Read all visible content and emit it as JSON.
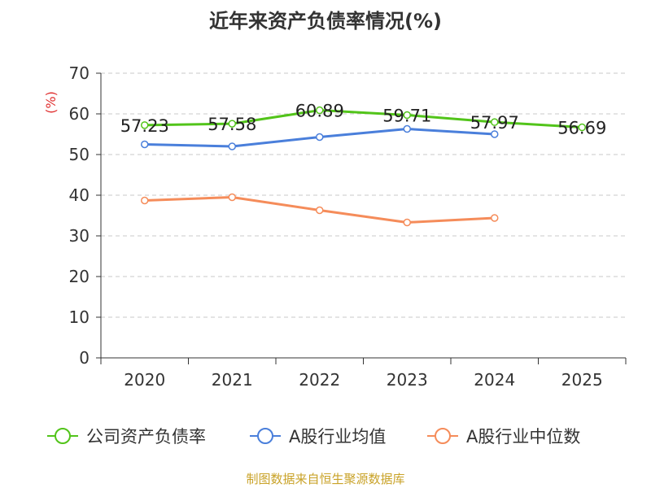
{
  "title": "近年来资产负债率情况(%)",
  "source_note": "制图数据来自恒生聚源数据库",
  "chart_data": {
    "type": "line",
    "categories": [
      "2020",
      "2021",
      "2022",
      "2023",
      "2024",
      "2025"
    ],
    "ylabel": "(%)",
    "ylim": [
      0,
      70
    ],
    "yticks": [
      0,
      10,
      20,
      30,
      40,
      50,
      60,
      70
    ],
    "grid": true,
    "legend_position": "bottom",
    "series": [
      {
        "name": "公司资产负债率",
        "color": "#52c41a",
        "values": [
          57.23,
          57.58,
          60.89,
          59.71,
          57.97,
          56.69
        ],
        "labels": [
          "57.23",
          "57.58",
          "60.89",
          "59.71",
          "57.97",
          "56.69"
        ],
        "show_labels": true
      },
      {
        "name": "A股行业均值",
        "color": "#4a7fdb",
        "values": [
          52.5,
          52.0,
          54.3,
          56.3,
          55.0,
          null
        ],
        "show_labels": false
      },
      {
        "name": "A股行业中位数",
        "color": "#f58c5a",
        "values": [
          38.7,
          39.5,
          36.3,
          33.3,
          34.4,
          null
        ],
        "show_labels": false
      }
    ]
  }
}
